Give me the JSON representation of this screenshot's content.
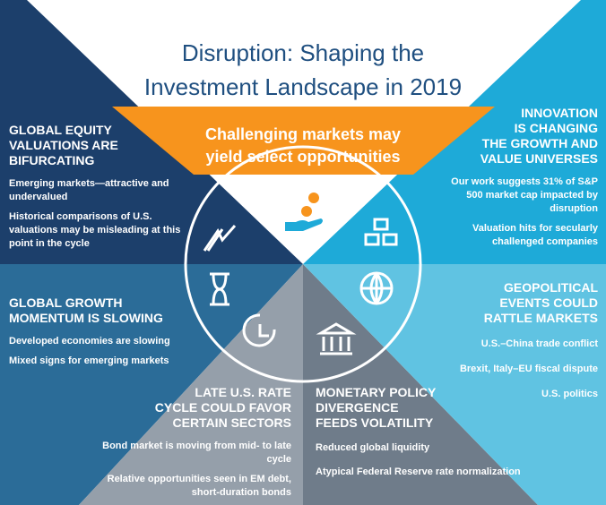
{
  "title": [
    "Disruption: Shaping the",
    "Investment Landscape in 2019"
  ],
  "banner": [
    "Challenging markets may",
    "yield select opportunities"
  ],
  "sections": [
    {
      "heading": [
        "GLOBAL EQUITY",
        "VALUATIONS ARE",
        "BIFURCATING"
      ],
      "points": [
        "Emerging markets—attractive and undervalued",
        "Historical comparisons of U.S. valuations may be misleading at this point in the cycle"
      ]
    },
    {
      "heading": [
        "INNOVATION",
        "IS CHANGING",
        "THE GROWTH AND",
        "VALUE UNIVERSES"
      ],
      "points": [
        "Our work suggests 31% of S&P 500 market cap impacted by disruption",
        "Valuation hits for secularly challenged companies"
      ]
    },
    {
      "heading": [
        "GLOBAL GROWTH",
        "MOMENTUM IS SLOWING"
      ],
      "points": [
        "Developed economies are slowing",
        "Mixed signs for emerging markets"
      ]
    },
    {
      "heading": [
        "GEOPOLITICAL",
        "EVENTS COULD",
        "RATTLE MARKETS"
      ],
      "points": [
        "U.S.–China trade conflict",
        "Brexit, Italy–EU fiscal dispute",
        "U.S. politics"
      ]
    },
    {
      "heading": [
        "LATE U.S. RATE",
        "CYCLE COULD FAVOR",
        "CERTAIN SECTORS"
      ],
      "points": [
        "Bond market is moving from mid- to late cycle",
        "Relative opportunities seen in EM debt, short-duration bonds"
      ]
    },
    {
      "heading": [
        "MONETARY POLICY",
        "DIVERGENCE",
        "FEEDS VOLATILITY"
      ],
      "points": [
        "Reduced global liquidity",
        "Atypical Federal Reserve rate normalization"
      ]
    }
  ]
}
